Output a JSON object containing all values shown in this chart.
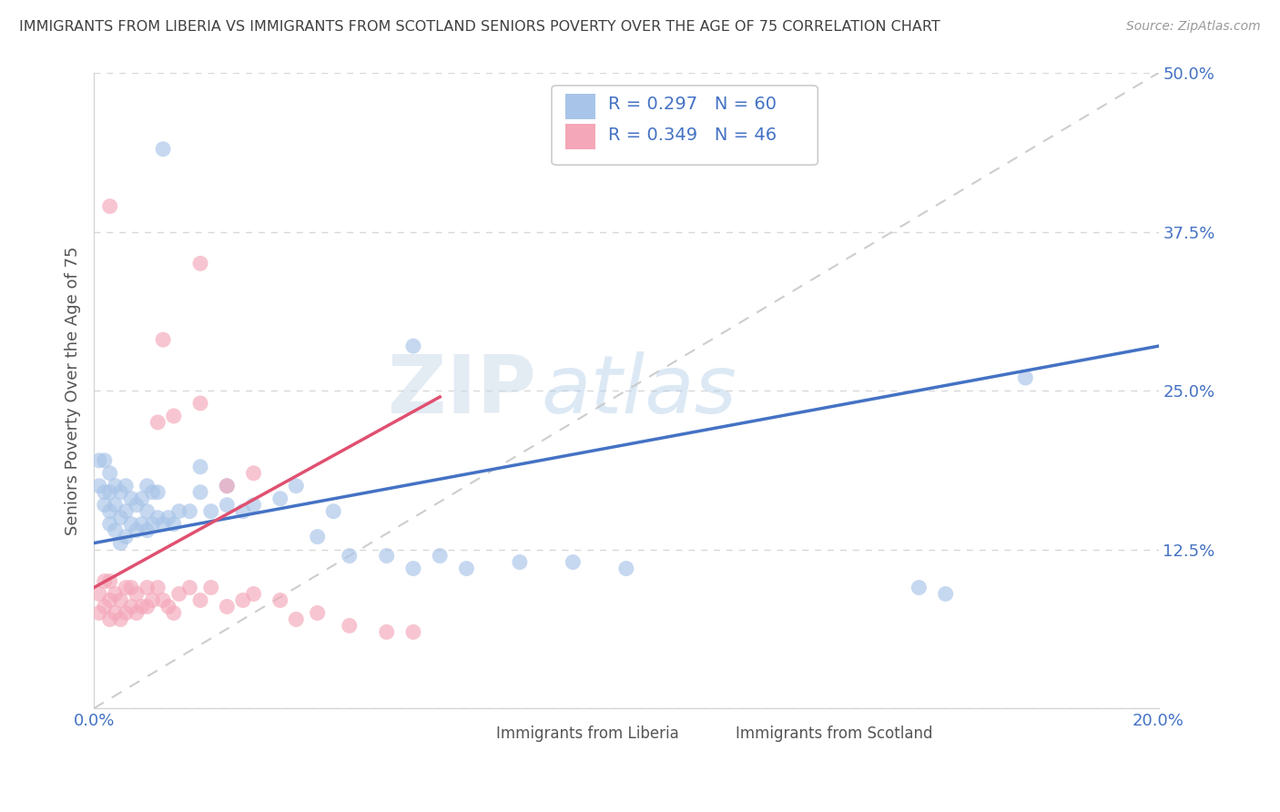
{
  "title": "IMMIGRANTS FROM LIBERIA VS IMMIGRANTS FROM SCOTLAND SENIORS POVERTY OVER THE AGE OF 75 CORRELATION CHART",
  "source": "Source: ZipAtlas.com",
  "xlabel": "",
  "ylabel": "Seniors Poverty Over the Age of 75",
  "legend_label_1": "Immigrants from Liberia",
  "legend_label_2": "Immigrants from Scotland",
  "R1": 0.297,
  "N1": 60,
  "R2": 0.349,
  "N2": 46,
  "color1": "#a8c4e8",
  "color2": "#f4a7b9",
  "line_color1": "#4472c4",
  "line_color2": "#e05070",
  "ref_line_color": "#c8c8c8",
  "xlim": [
    0.0,
    0.2
  ],
  "ylim": [
    0.0,
    0.5
  ],
  "xticks": [
    0.0,
    0.05,
    0.1,
    0.15,
    0.2
  ],
  "yticks": [
    0.0,
    0.125,
    0.25,
    0.375,
    0.5
  ],
  "watermark": "ZIPatlas",
  "title_color": "#404040",
  "axis_label_color": "#555555",
  "tick_color": "#4472c4",
  "legend_R_color": "#4472c4",
  "trendline1_x0": 0.0,
  "trendline1_y0": 0.13,
  "trendline1_x1": 0.2,
  "trendline1_y1": 0.285,
  "trendline2_x0": 0.0,
  "trendline2_y0": 0.095,
  "trendline2_x1": 0.065,
  "trendline2_y1": 0.245
}
